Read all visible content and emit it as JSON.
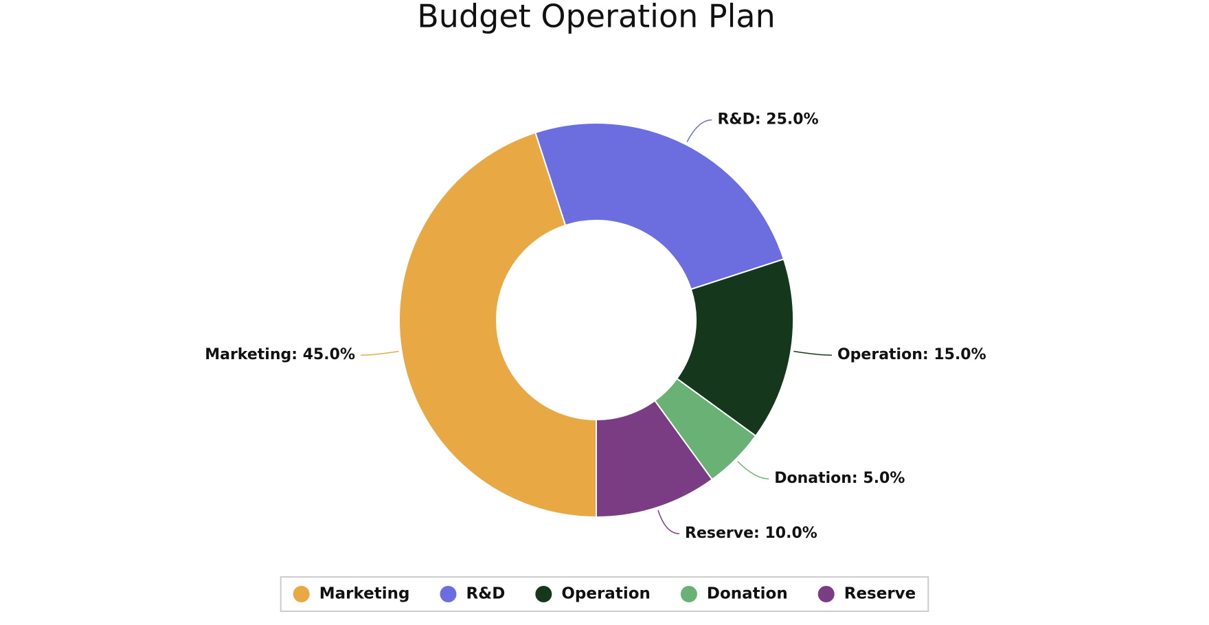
{
  "chart_data": {
    "type": "donut",
    "title": "Budget Operation Plan",
    "categories": [
      "Marketing",
      "R&D",
      "Operation",
      "Donation",
      "Reserve"
    ],
    "values": [
      45,
      25,
      15,
      5,
      10
    ],
    "value_labels": [
      "Marketing: 45.0%",
      "R&D: 25.0%",
      "Operation: 15.0%",
      "Donation: 5.0%",
      "Reserve: 10.0%"
    ],
    "colors": [
      "#e8a945",
      "#6c6ee0",
      "#15381c",
      "#69b174",
      "#7a3d84"
    ],
    "legend": "bottom"
  }
}
